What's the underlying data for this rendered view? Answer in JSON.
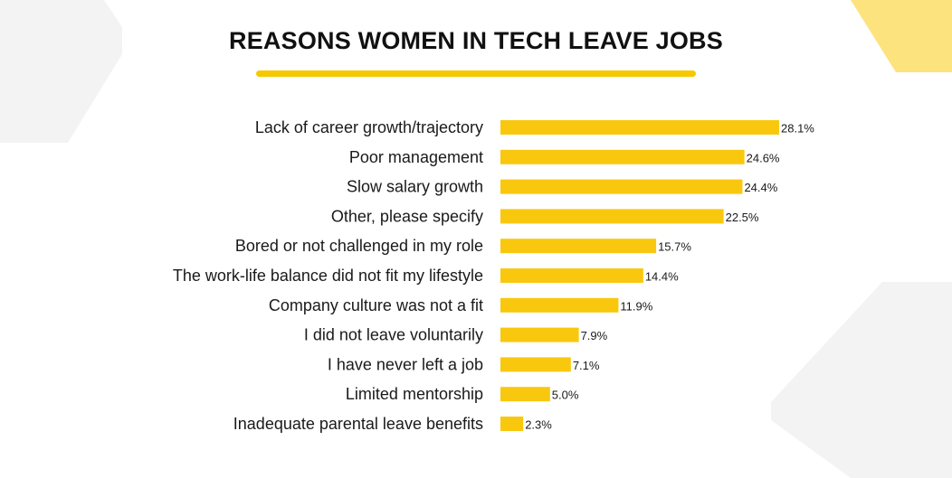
{
  "colors": {
    "bar": "#f9c80e",
    "accent_yellow": "#fde37e",
    "decor_gray": "#f3f3f3"
  },
  "chart_data": {
    "type": "bar",
    "orientation": "horizontal",
    "title": "REASONS WOMEN IN TECH LEAVE JOBS",
    "xlabel": "",
    "ylabel": "",
    "xlim": [
      0,
      28.1
    ],
    "grid": false,
    "value_suffix": "%",
    "categories": [
      "Lack of career growth/trajectory",
      "Poor management",
      "Slow salary growth",
      "Other, please specify",
      "Bored or not challenged in my role",
      "The work-life balance did not fit my lifestyle",
      "Company culture was not a fit",
      "I did not leave voluntarily",
      "I have never left a job",
      "Limited mentorship",
      "Inadequate parental leave benefits"
    ],
    "values": [
      28.1,
      24.6,
      24.4,
      22.5,
      15.7,
      14.4,
      11.9,
      7.9,
      7.1,
      5.0,
      2.3
    ],
    "value_labels": [
      "28.1%",
      "24.6%",
      "24.4%",
      "22.5%",
      "15.7%",
      "14.4%",
      "11.9%",
      "7.9%",
      "7.1%",
      "5.0%",
      "2.3%"
    ]
  }
}
